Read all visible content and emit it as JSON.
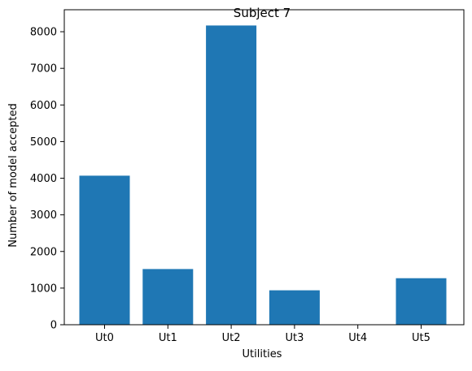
{
  "chart_data": {
    "type": "bar",
    "title": "Subject 7",
    "xlabel": "Utilities",
    "ylabel": "Number of model accepted",
    "categories": [
      "Ut0",
      "Ut1",
      "Ut2",
      "Ut3",
      "Ut4",
      "Ut5"
    ],
    "values": [
      4070,
      1520,
      8170,
      940,
      0,
      1270
    ],
    "ylim": [
      0,
      8600
    ],
    "yticks": [
      0,
      1000,
      2000,
      3000,
      4000,
      5000,
      6000,
      7000,
      8000
    ],
    "bar_color": "#1f77b4",
    "grid": false,
    "legend": "none"
  }
}
